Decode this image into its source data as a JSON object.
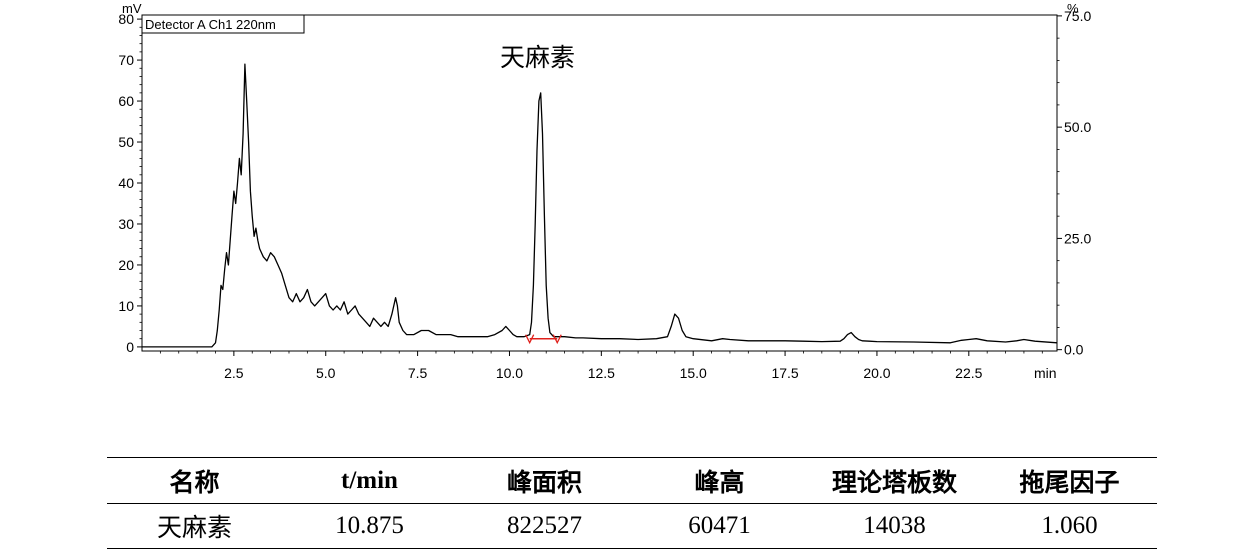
{
  "chart_data": {
    "type": "line",
    "title": "",
    "legend": "Detector A Ch1 220nm",
    "legend_placement": "top-left",
    "xlabel": "min",
    "ylabel": "mV",
    "y2label": "%",
    "xlim": [
      0,
      24.9
    ],
    "ylim": [
      -1,
      81
    ],
    "y2lim": [
      -0.3,
      75.2
    ],
    "x_ticks": [
      "2.5",
      "5.0",
      "7.5",
      "10.0",
      "12.5",
      "15.0",
      "17.5",
      "20.0",
      "22.5"
    ],
    "y_ticks": [
      "0",
      "10",
      "20",
      "30",
      "40",
      "50",
      "60",
      "70",
      "80"
    ],
    "y2_ticks": [
      "0.0",
      "25.0",
      "50.0",
      "75.0"
    ],
    "grid": false,
    "annotation": "天麻素",
    "integration_baseline": {
      "x_start": 10.55,
      "x_end": 11.3,
      "y": 2.0
    },
    "series": [
      {
        "x": [
          0,
          1.9,
          2.0,
          2.05,
          2.1,
          2.15,
          2.2,
          2.25,
          2.3,
          2.35,
          2.4,
          2.45,
          2.5,
          2.55,
          2.6,
          2.65,
          2.7,
          2.75,
          2.8,
          2.85,
          2.9,
          2.95,
          3.0,
          3.05,
          3.1,
          3.15,
          3.2,
          3.3,
          3.4,
          3.5,
          3.6,
          3.7,
          3.8,
          3.9,
          4.0,
          4.1,
          4.2,
          4.3,
          4.4,
          4.5,
          4.6,
          4.7,
          4.8,
          4.9,
          5.0,
          5.1,
          5.2,
          5.3,
          5.4,
          5.5,
          5.6,
          5.7,
          5.8,
          5.9,
          6.0,
          6.1,
          6.2,
          6.3,
          6.4,
          6.5,
          6.6,
          6.7,
          6.8,
          6.9,
          6.95,
          7.0,
          7.1,
          7.2,
          7.4,
          7.6,
          7.8,
          8.0,
          8.2,
          8.4,
          8.6,
          8.8,
          9.0,
          9.2,
          9.4,
          9.6,
          9.8,
          9.9,
          10.0,
          10.1,
          10.2,
          10.4,
          10.55,
          10.6,
          10.65,
          10.7,
          10.75,
          10.8,
          10.85,
          10.9,
          10.95,
          11.0,
          11.05,
          11.1,
          11.2,
          11.3,
          11.5,
          11.8,
          12.0,
          12.5,
          13.0,
          13.5,
          14.0,
          14.3,
          14.4,
          14.5,
          14.6,
          14.7,
          14.8,
          15.0,
          15.5,
          15.8,
          16.0,
          16.5,
          17.0,
          17.5,
          18.0,
          18.5,
          19.0,
          19.1,
          19.2,
          19.3,
          19.4,
          19.5,
          19.6,
          19.8,
          20.0,
          21.0,
          22.0,
          22.3,
          22.5,
          22.7,
          23.0,
          23.5,
          23.8,
          24.0,
          24.3,
          24.9
        ],
        "y": [
          0,
          0,
          1,
          4,
          9,
          15,
          14,
          19,
          23,
          20,
          26,
          32,
          38,
          35,
          40,
          46,
          42,
          52,
          69,
          60,
          50,
          38,
          32,
          27,
          29,
          26,
          24,
          22,
          21,
          23,
          22,
          20,
          18,
          15,
          12,
          11,
          13,
          11,
          12,
          14,
          11,
          10,
          11,
          12,
          13,
          10,
          9,
          10,
          9,
          11,
          8,
          9,
          10,
          8,
          7,
          6,
          5,
          7,
          6,
          5,
          6,
          5,
          8,
          12,
          10,
          6,
          4,
          3,
          3,
          4,
          4,
          3,
          3,
          3,
          2.5,
          2.5,
          2.5,
          2.5,
          2.5,
          3,
          4,
          5,
          4,
          3,
          2.5,
          2.5,
          3,
          6,
          15,
          30,
          48,
          60,
          62,
          52,
          32,
          15,
          7,
          3.5,
          2.5,
          2.5,
          2.5,
          2.2,
          2.2,
          2.0,
          2.0,
          1.8,
          2.0,
          2.5,
          5,
          8,
          7,
          4,
          2.5,
          2.0,
          1.5,
          2.0,
          1.8,
          1.5,
          1.5,
          1.5,
          1.4,
          1.3,
          1.4,
          2.0,
          3.0,
          3.5,
          2.5,
          1.8,
          1.5,
          1.4,
          1.3,
          1.2,
          1.0,
          1.6,
          1.8,
          2.0,
          1.5,
          1.2,
          1.5,
          1.8,
          1.4,
          1.0
        ]
      }
    ]
  },
  "results_table": {
    "headers": [
      "名称",
      "t/min",
      "峰面积",
      "峰高",
      "理论塔板数",
      "拖尾因子"
    ],
    "rows": [
      [
        "天麻素",
        "10.875",
        "822527",
        "60471",
        "14038",
        "1.060"
      ]
    ]
  }
}
